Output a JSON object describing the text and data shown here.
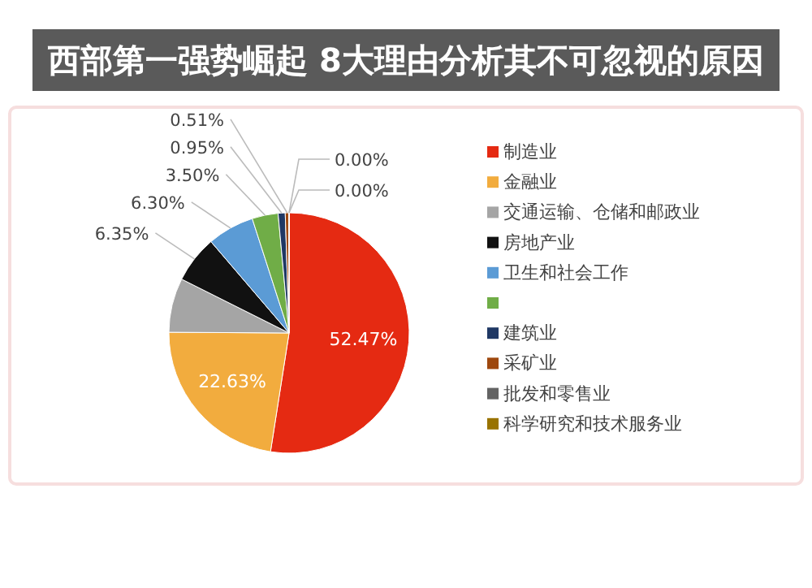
{
  "chart_data": {
    "type": "pie",
    "title": "西部第一强势崛起 8大理由分析其不可忽视的原因",
    "categories": [
      "制造业",
      "金融业",
      "交通运输、仓储和邮政业",
      "房地产业",
      "卫生和社会工作",
      null,
      "建筑业",
      "采矿业",
      "批发和零售业",
      "科学研究和技术服务业"
    ],
    "values": [
      52.47,
      22.63,
      7.29,
      6.35,
      6.3,
      3.5,
      0.95,
      0.51,
      0.0,
      0.0
    ],
    "colors": [
      "#e52a12",
      "#f2ac3e",
      "#a5a5a5",
      "#111111",
      "#5b9bd5",
      "#70ad47",
      "#1f3864",
      "#9e480e",
      "#636363",
      "#997300"
    ],
    "value_labels": [
      "52.47%",
      "22.63%",
      null,
      "6.35%",
      "6.30%",
      "3.50%",
      "0.95%",
      "0.51%",
      "0.00%",
      "0.00%"
    ],
    "legend": "right"
  }
}
